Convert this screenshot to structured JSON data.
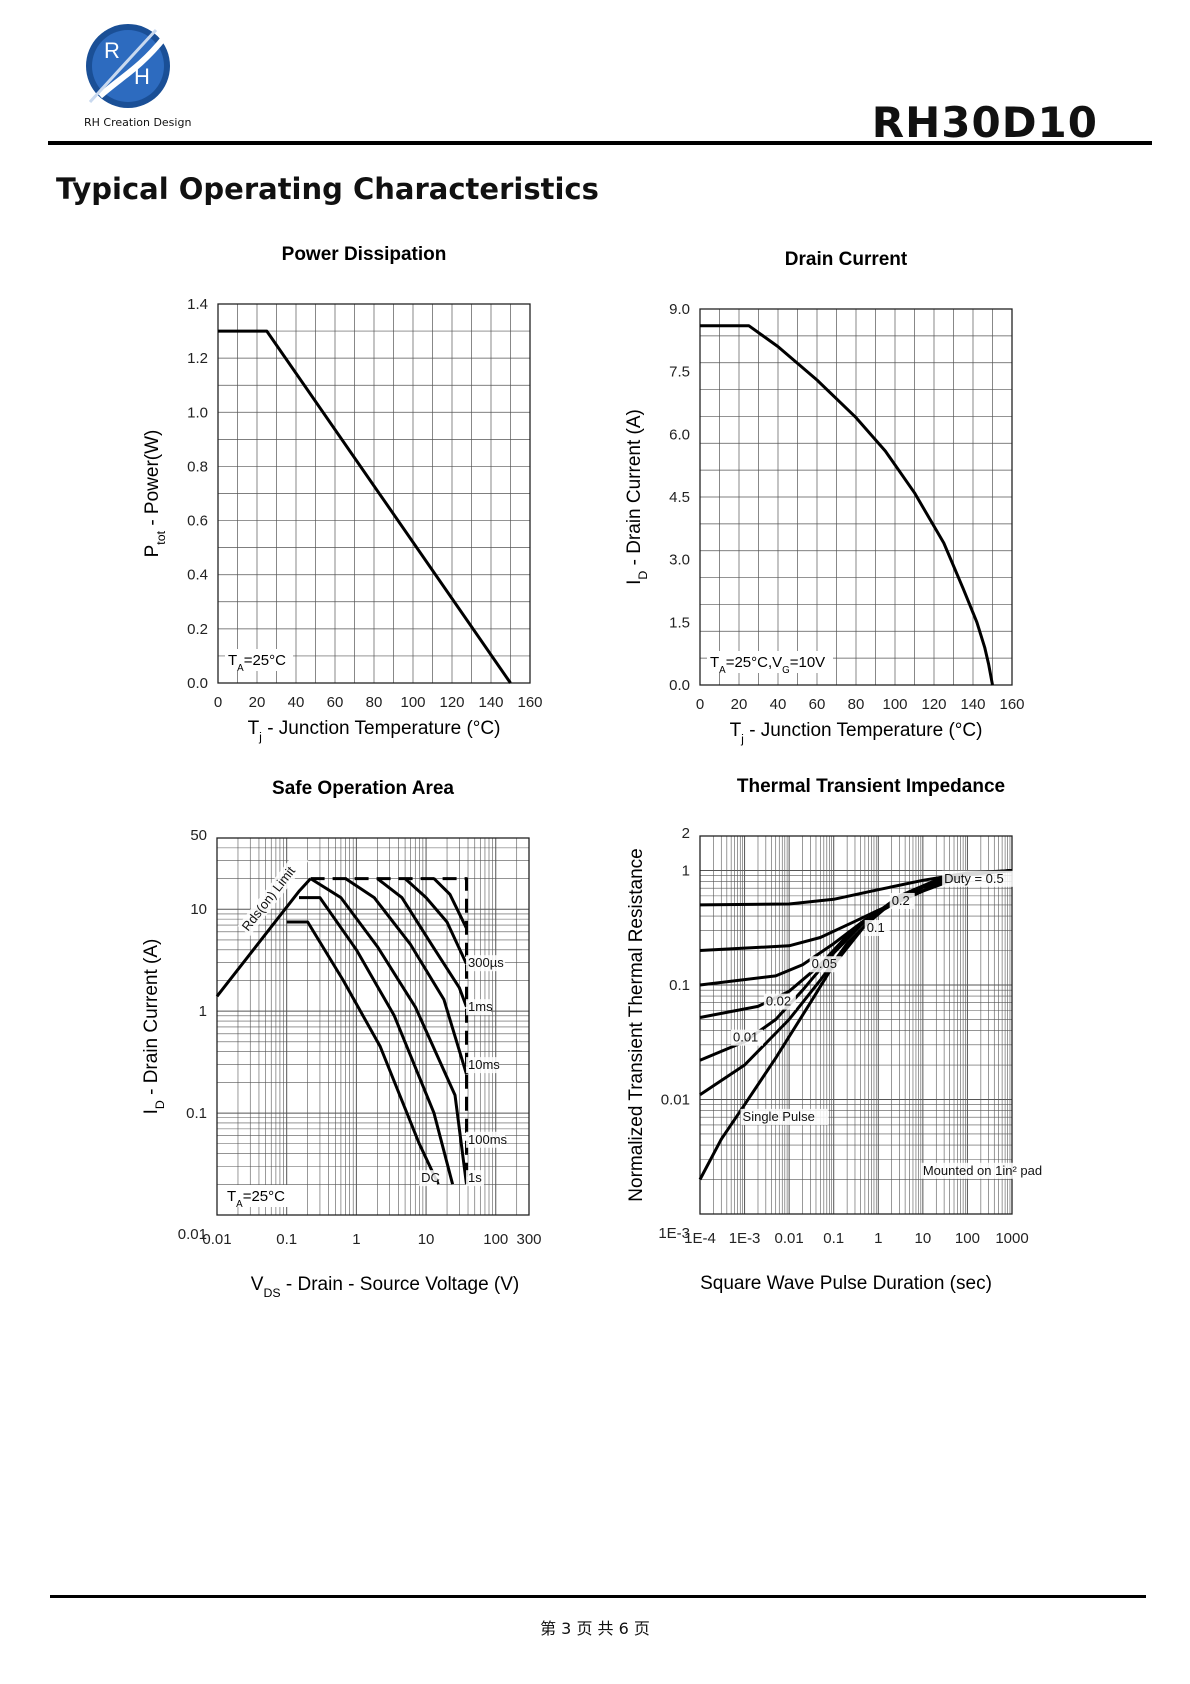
{
  "header": {
    "logo_letters": [
      "R",
      "H"
    ],
    "logo_text": "RH Creation Design",
    "part_number": "RH30D10",
    "page_title": "Typical Operating Characteristics"
  },
  "footer": {
    "page_text": "第 3 页 共 6 页"
  },
  "chart_data": [
    {
      "id": "power",
      "type": "line",
      "title": "Power Dissipation",
      "ylabel_main": "P",
      "ylabel_sub": "tot",
      "ylabel_rest": " - Power(W)",
      "xlabel_main": "T",
      "xlabel_sub": "j",
      "xlabel_rest": " - Junction Temperature (°C)",
      "xlim": [
        0,
        160
      ],
      "ylim": [
        0,
        1.4
      ],
      "xticks": [
        0,
        20,
        40,
        60,
        80,
        100,
        120,
        140,
        160
      ],
      "yticks": [
        0.0,
        0.2,
        0.4,
        0.6,
        0.8,
        1.0,
        1.2,
        1.4
      ],
      "ytick_labels": [
        "0.0",
        "0.2",
        "0.4",
        "0.6",
        "0.8",
        "1.0",
        "1.2",
        "1.4"
      ],
      "grid": true,
      "series": [
        {
          "x": [
            0,
            25,
            150
          ],
          "y": [
            1.3,
            1.3,
            0
          ]
        }
      ],
      "annotation": {
        "main": "T",
        "sub": "A",
        "rest": "=25°C"
      }
    },
    {
      "id": "drain",
      "type": "line",
      "title": "Drain Current",
      "ylabel_main": "I",
      "ylabel_sub": "D",
      "ylabel_rest": " - Drain Current (A)",
      "xlabel_main": "T",
      "xlabel_sub": "j",
      "xlabel_rest": " - Junction Temperature (°C)",
      "xlim": [
        0,
        160
      ],
      "ylim": [
        0,
        9.0
      ],
      "xticks": [
        0,
        20,
        40,
        60,
        80,
        100,
        120,
        140,
        160
      ],
      "yticks": [
        0.0,
        1.5,
        3.0,
        4.5,
        6.0,
        7.5,
        9.0
      ],
      "ytick_labels": [
        "0.0",
        "1.5",
        "3.0",
        "4.5",
        "6.0",
        "7.5",
        "9.0"
      ],
      "grid": true,
      "series": [
        {
          "x": [
            0,
            25,
            40,
            60,
            80,
            95,
            110,
            125,
            135,
            142,
            146,
            148,
            150
          ],
          "y": [
            8.6,
            8.6,
            8.1,
            7.3,
            6.4,
            5.6,
            4.6,
            3.4,
            2.3,
            1.5,
            0.9,
            0.5,
            0
          ]
        }
      ],
      "annotation": {
        "main": "T",
        "sub": "A",
        "rest": "=25°C,V",
        "sub2": "G",
        "rest2": "=10V"
      }
    },
    {
      "id": "soa",
      "type": "line",
      "title": "Safe Operation Area",
      "ylabel_main": "I",
      "ylabel_sub": "D",
      "ylabel_rest": " - Drain Current (A)",
      "xlabel_main": "V",
      "xlabel_sub": "DS",
      "xlabel_rest": " - Drain - Source Voltage (V)",
      "xscale": "log",
      "yscale": "log",
      "xlim": [
        0.01,
        300
      ],
      "ylim": [
        0.01,
        50
      ],
      "xtick_labels": [
        [
          "0.01",
          0.01
        ],
        [
          "0.1",
          0.1
        ],
        [
          "1",
          1
        ],
        [
          "10",
          10
        ],
        [
          "100",
          100
        ],
        [
          "300",
          300
        ]
      ],
      "ytick_labels": [
        [
          "0.01",
          0.01
        ],
        [
          "0.1",
          0.1
        ],
        [
          "1",
          1
        ],
        [
          "10",
          10
        ],
        [
          "50",
          50
        ]
      ],
      "grid": true,
      "series": [
        {
          "x": [
            0.01,
            0.15,
            0.22
          ],
          "y": [
            1.4,
            15,
            20
          ]
        },
        {
          "x": [
            0.1,
            0.2,
            0.65,
            2.2,
            8,
            15
          ],
          "y": [
            7.5,
            7.5,
            2,
            0.45,
            0.05,
            0.02
          ]
        },
        {
          "x": [
            0.15,
            0.3,
            1,
            3.5,
            13,
            24
          ],
          "y": [
            13,
            13,
            4,
            0.9,
            0.1,
            0.02
          ]
        },
        {
          "x": [
            0.22,
            0.6,
            2,
            7,
            26,
            38
          ],
          "y": [
            20,
            13,
            4.3,
            1.1,
            0.15,
            0.02
          ]
        },
        {
          "x": [
            0.7,
            1.8,
            6,
            18,
            38
          ],
          "y": [
            20,
            13,
            4.5,
            1.3,
            0.24
          ]
        },
        {
          "x": [
            2,
            4.5,
            12,
            30,
            38
          ],
          "y": [
            20,
            13,
            4.5,
            1.7,
            1.1
          ]
        },
        {
          "x": [
            5,
            10,
            20,
            38
          ],
          "y": [
            20,
            13,
            7.5,
            2.9
          ]
        },
        {
          "x": [
            13,
            22,
            38
          ],
          "y": [
            20,
            14,
            6.5
          ]
        }
      ],
      "dashed": [
        {
          "x": [
            0.22,
            38,
            38
          ],
          "y": [
            20,
            20,
            0.02
          ]
        }
      ],
      "labels": [
        {
          "text": "Rds(on) Limit",
          "x": 0.028,
          "y": 6,
          "rotate": -52
        },
        {
          "text": "300µs",
          "x": 40,
          "y": 2.7
        },
        {
          "text": "1ms",
          "x": 40,
          "y": 1.0
        },
        {
          "text": "10ms",
          "x": 40,
          "y": 0.27
        },
        {
          "text": "100ms",
          "x": 40,
          "y": 0.05
        },
        {
          "text": "1s",
          "x": 40,
          "y": 0.021
        },
        {
          "text": "DC",
          "x": 8.5,
          "y": 0.021
        }
      ],
      "annotation": {
        "main": "T",
        "sub": "A",
        "rest": "=25°C"
      }
    },
    {
      "id": "thermal",
      "type": "line",
      "title": "Thermal Transient Impedance",
      "ylabel": "Normalized Transient Thermal Resistance",
      "xlabel": "Square Wave Pulse Duration (sec)",
      "xscale": "log",
      "yscale": "log",
      "xlim": [
        0.0001,
        1000
      ],
      "ylim": [
        0.001,
        2
      ],
      "xtick_labels": [
        [
          "1E-4",
          0.0001
        ],
        [
          "1E-3",
          0.001
        ],
        [
          "0.01",
          0.01
        ],
        [
          "0.1",
          0.1
        ],
        [
          "1",
          1
        ],
        [
          "10",
          10
        ],
        [
          "100",
          100
        ],
        [
          "1000",
          1000
        ]
      ],
      "ytick_labels": [
        [
          "1E-3",
          0.001
        ],
        [
          "0.01",
          0.01
        ],
        [
          "0.1",
          0.1
        ],
        [
          "1",
          1
        ],
        [
          "2",
          2
        ]
      ],
      "grid": true,
      "series": [
        {
          "name": "Duty = 0.5",
          "x": [
            0.0001,
            0.01,
            0.1,
            1,
            10,
            100,
            1000
          ],
          "y": [
            0.5,
            0.51,
            0.56,
            0.68,
            0.82,
            0.95,
            1.0
          ]
        },
        {
          "name": "0.2",
          "x": [
            0.0001,
            0.01,
            0.05,
            0.3,
            1,
            10,
            100,
            1000
          ],
          "y": [
            0.2,
            0.22,
            0.26,
            0.36,
            0.45,
            0.66,
            0.92,
            1.0
          ]
        },
        {
          "name": "0.1",
          "x": [
            0.0001,
            0.005,
            0.02,
            0.1,
            0.5,
            2,
            20,
            100,
            1000
          ],
          "y": [
            0.1,
            0.12,
            0.15,
            0.23,
            0.37,
            0.5,
            0.75,
            0.93,
            1.0
          ]
        },
        {
          "name": "0.05",
          "x": [
            0.0001,
            0.002,
            0.01,
            0.05,
            0.2,
            1,
            10,
            100,
            1000
          ],
          "y": [
            0.052,
            0.065,
            0.088,
            0.15,
            0.27,
            0.44,
            0.72,
            0.93,
            1.0
          ]
        },
        {
          "name": "0.02",
          "x": [
            0.0001,
            0.001,
            0.005,
            0.02,
            0.1,
            0.5,
            3,
            50,
            1000
          ],
          "y": [
            0.022,
            0.032,
            0.05,
            0.09,
            0.19,
            0.36,
            0.6,
            0.9,
            1.0
          ]
        },
        {
          "name": "0.01",
          "x": [
            0.0001,
            0.001,
            0.01,
            0.05,
            0.2,
            1,
            10,
            100,
            1000
          ],
          "y": [
            0.011,
            0.02,
            0.05,
            0.11,
            0.23,
            0.43,
            0.71,
            0.93,
            1.0
          ]
        },
        {
          "name": "Single Pulse",
          "x": [
            0.0001,
            0.0003,
            0.001,
            0.005,
            0.03,
            0.1,
            0.5,
            3,
            30,
            1000
          ],
          "y": [
            0.002,
            0.0045,
            0.009,
            0.023,
            0.07,
            0.15,
            0.33,
            0.6,
            0.88,
            1.0
          ]
        }
      ],
      "labels": [
        {
          "text": "Duty = 0.5",
          "x": 30,
          "y": 0.78
        },
        {
          "text": "0.2",
          "x": 2,
          "y": 0.5
        },
        {
          "text": "0.1",
          "x": 0.55,
          "y": 0.29
        },
        {
          "text": "0.05",
          "x": 0.032,
          "y": 0.14
        },
        {
          "text": "0.02",
          "x": 0.003,
          "y": 0.066
        },
        {
          "text": "0.01",
          "x": 0.00055,
          "y": 0.032
        },
        {
          "text": "Single Pulse",
          "x": 0.0009,
          "y": 0.0065
        },
        {
          "text": "Mounted on 1in² pad",
          "x": 10,
          "y": 0.0022
        }
      ]
    }
  ]
}
